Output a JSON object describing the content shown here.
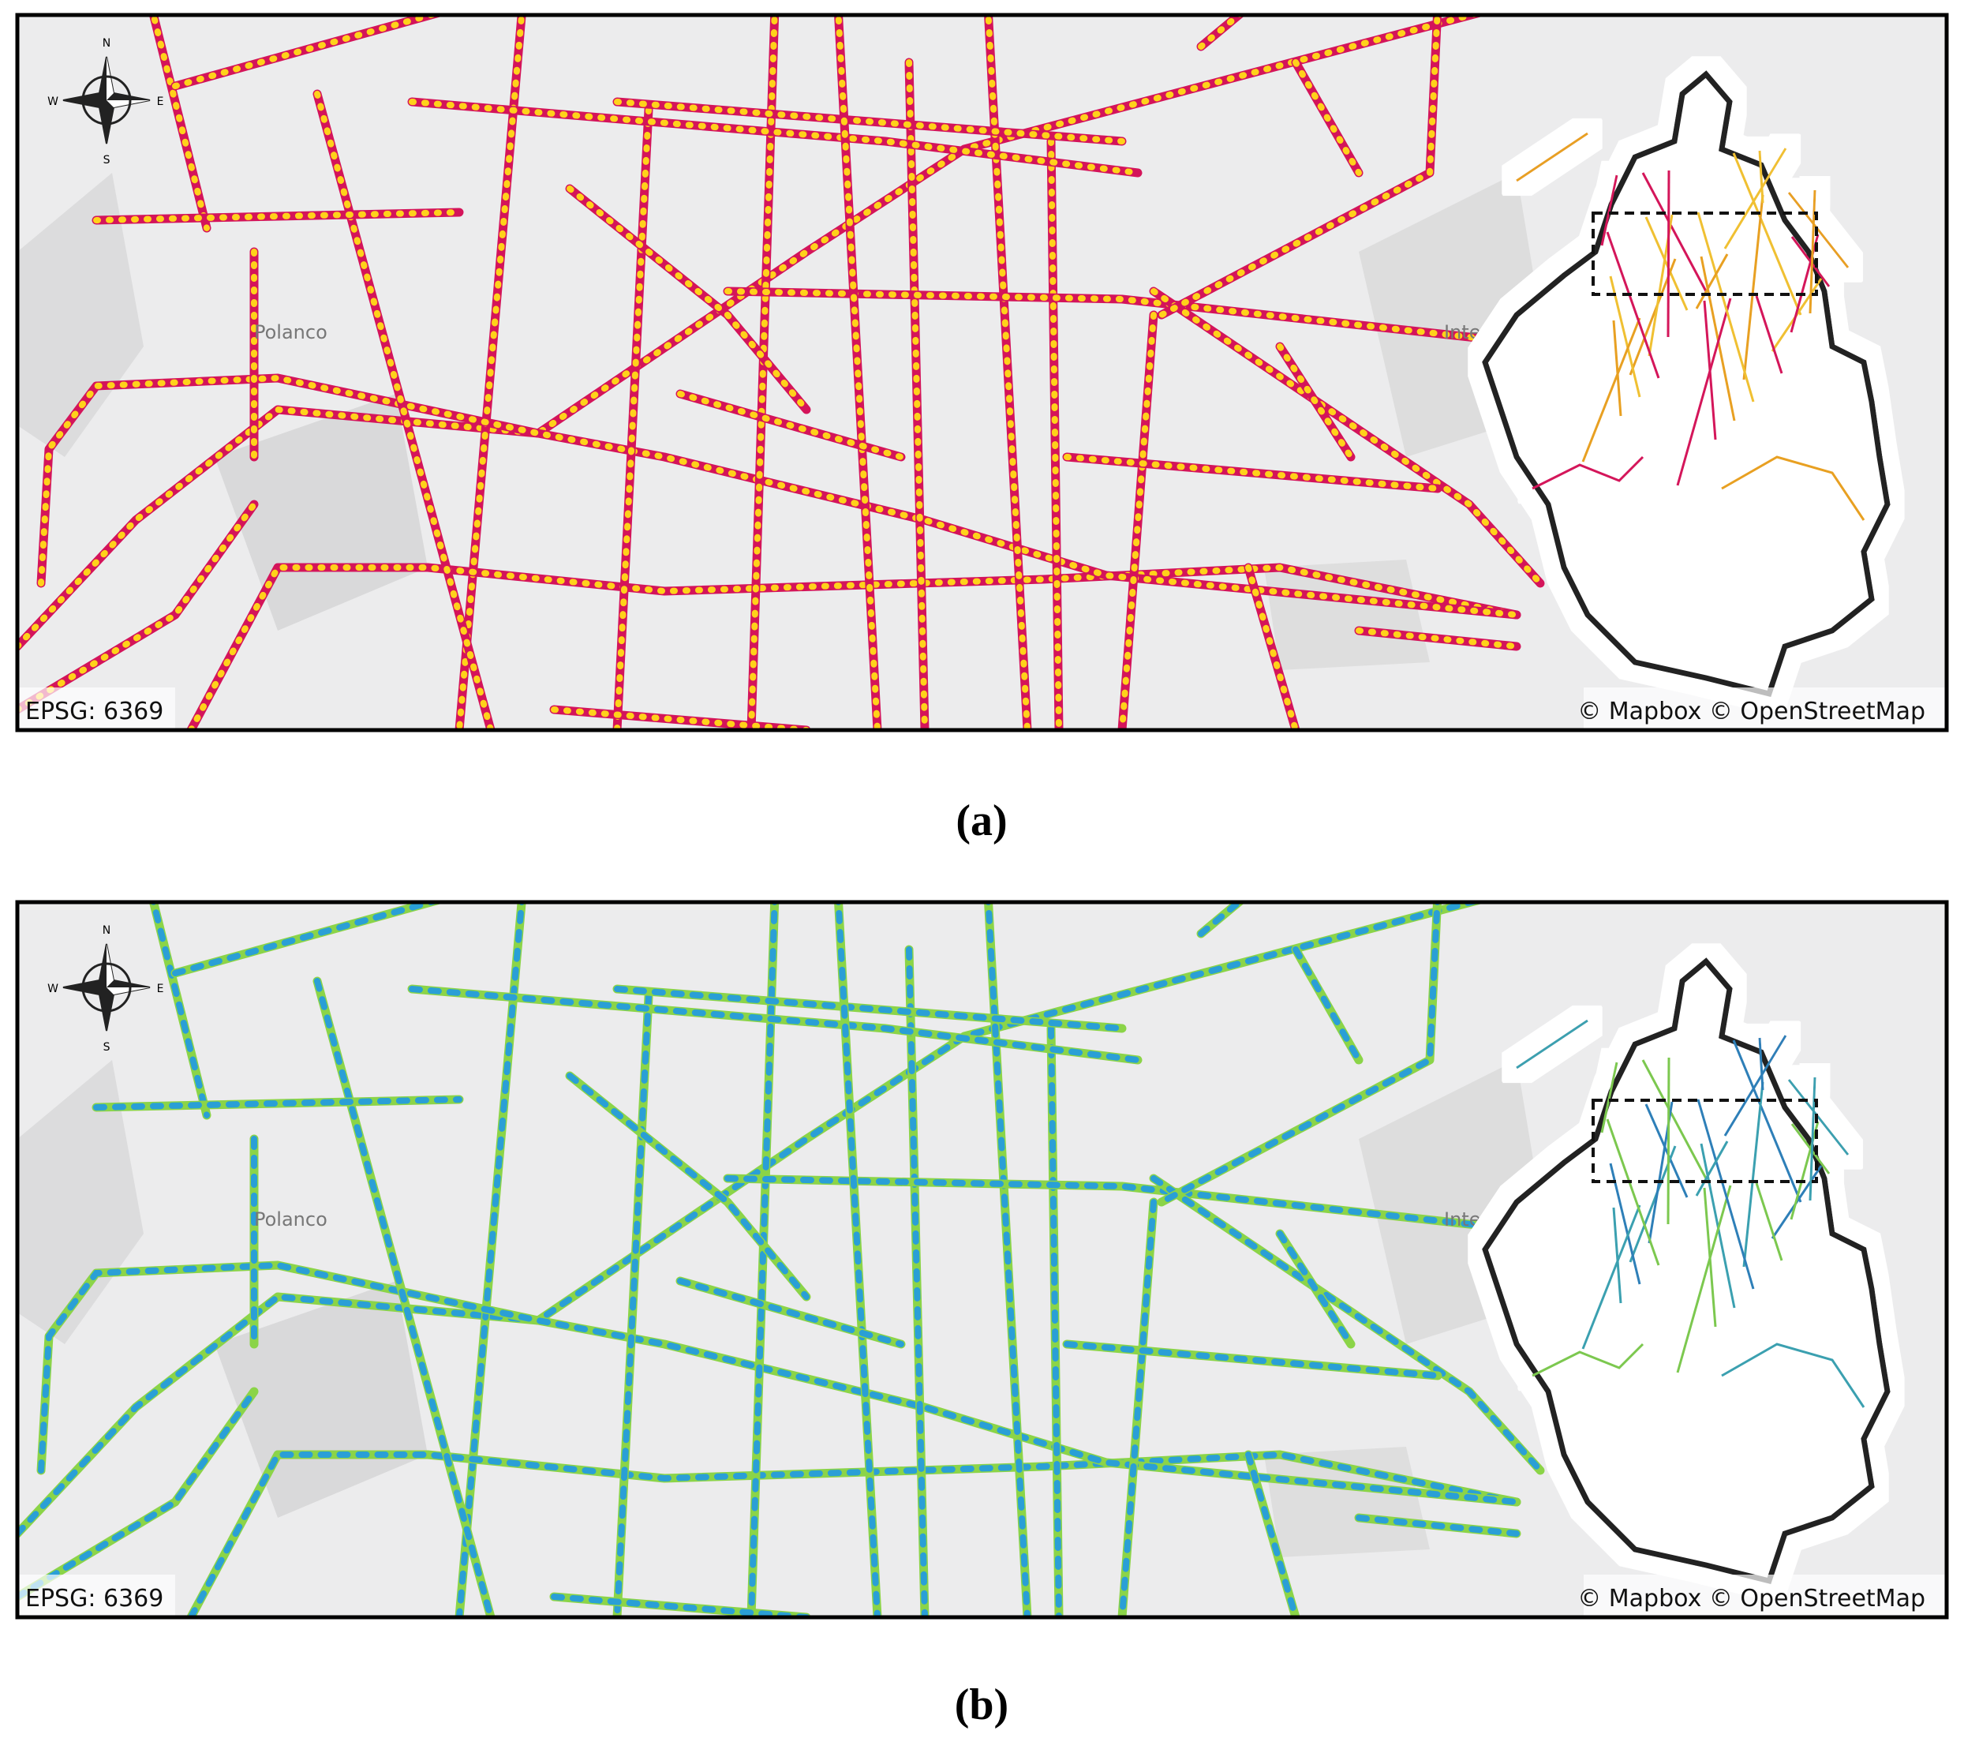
{
  "panels": [
    {
      "label": "(a)",
      "crs": "EPSG: 6369",
      "attribution": "© Mapbox © OpenStreetMap",
      "compass": {
        "n": "N",
        "e": "E",
        "s": "S",
        "w": "W"
      },
      "place_labels": [
        "Polanco",
        "Inte"
      ]
    },
    {
      "label": "(b)",
      "crs": "EPSG: 6369",
      "attribution": "© Mapbox © OpenStreetMap",
      "compass": {
        "n": "N",
        "e": "E",
        "s": "S",
        "w": "W"
      },
      "place_labels": [
        "Polanco",
        "Inte"
      ]
    }
  ]
}
